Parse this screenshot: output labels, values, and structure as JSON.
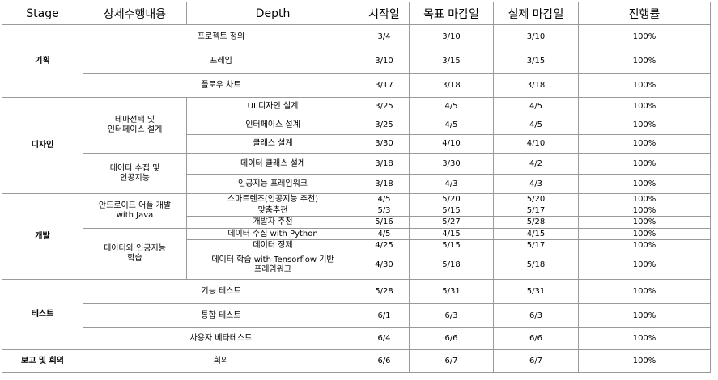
{
  "headers": {
    "stage": "Stage",
    "detail": "상세수행내용",
    "depth": "Depth",
    "start": "시작일",
    "target_due": "목표 마감일",
    "actual_due": "실제 마감일",
    "progress": "진행률"
  },
  "stages": {
    "planning": "기획",
    "design": "디자인",
    "development": "개발",
    "test": "테스트",
    "report": "보고 및 회의"
  },
  "subgroups": {
    "theme_ui_l1": "테마선택 및",
    "theme_ui_l2": "인터페이스 설계",
    "data_ai_l1": "데이터 수집 및",
    "data_ai_l2": "인공지능",
    "android_l1": "안드로이드 어플 개발",
    "android_l2": "with Java",
    "data_learn_l1": "데이터와 인공지능",
    "data_learn_l2": "학습"
  },
  "rows": {
    "project_def": {
      "depth": "프로젝트 정의",
      "start": "3/4",
      "target": "3/10",
      "actual": "3/10",
      "progress": "100%"
    },
    "frame": {
      "depth": "프레임",
      "start": "3/10",
      "target": "3/15",
      "actual": "3/15",
      "progress": "100%"
    },
    "flow_chart": {
      "depth": "플로우 차트",
      "start": "3/17",
      "target": "3/18",
      "actual": "3/18",
      "progress": "100%"
    },
    "ui_design": {
      "depth": "UI 디자인 설계",
      "start": "3/25",
      "target": "4/5",
      "actual": "4/5",
      "progress": "100%"
    },
    "interface_design": {
      "depth": "인터페이스 설계",
      "start": "3/25",
      "target": "4/5",
      "actual": "4/5",
      "progress": "100%"
    },
    "class_design": {
      "depth": "클래스 설계",
      "start": "3/30",
      "target": "4/10",
      "actual": "4/10",
      "progress": "100%"
    },
    "data_class_design": {
      "depth": "데이터 클래스 설계",
      "start": "3/18",
      "target": "3/30",
      "actual": "4/2",
      "progress": "100%"
    },
    "ai_framework": {
      "depth": "인공지능 프레임워크",
      "start": "3/18",
      "target": "4/3",
      "actual": "4/3",
      "progress": "100%"
    },
    "smart_lens": {
      "depth": "스마트렌즈(인공지능 추천)",
      "start": "4/5",
      "target": "5/20",
      "actual": "5/20",
      "progress": "100%"
    },
    "custom_recommend": {
      "depth": "맞춤추천",
      "start": "5/3",
      "target": "5/15",
      "actual": "5/17",
      "progress": "100%"
    },
    "dev_recommend": {
      "depth": "개발자 추천",
      "start": "5/16",
      "target": "5/27",
      "actual": "5/28",
      "progress": "100%"
    },
    "data_collect_python": {
      "depth": "데이터 수집 with Python",
      "start": "4/5",
      "target": "4/15",
      "actual": "4/15",
      "progress": "100%"
    },
    "data_refine": {
      "depth": "데이터 정제",
      "start": "4/25",
      "target": "5/15",
      "actual": "5/17",
      "progress": "100%"
    },
    "data_learn_tf": {
      "depth_l1": "데이터 학습 with Tensorflow 기반",
      "depth_l2": "프레임워크",
      "start": "4/30",
      "target": "5/18",
      "actual": "5/18",
      "progress": "100%"
    },
    "func_test": {
      "depth": "기능 테스트",
      "start": "5/28",
      "target": "5/31",
      "actual": "5/31",
      "progress": "100%"
    },
    "integration_test": {
      "depth": "통합 테스트",
      "start": "6/1",
      "target": "6/3",
      "actual": "6/3",
      "progress": "100%"
    },
    "beta_test": {
      "depth": "사용자 베타테스트",
      "start": "6/4",
      "target": "6/6",
      "actual": "6/6",
      "progress": "100%"
    },
    "meeting": {
      "depth": "회의",
      "start": "6/6",
      "target": "6/7",
      "actual": "6/7",
      "progress": "100%"
    }
  }
}
